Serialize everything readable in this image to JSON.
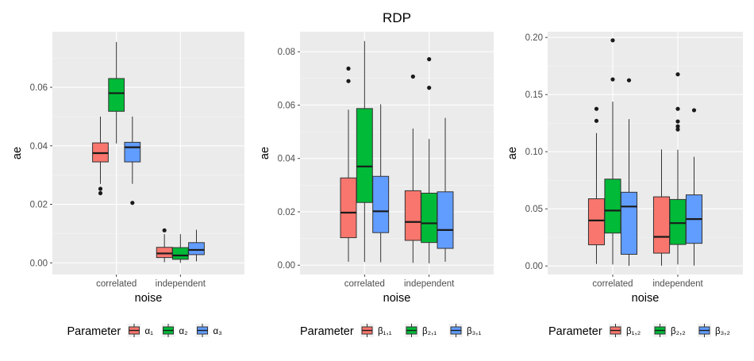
{
  "page_title": "RDP",
  "chart_data": [
    {
      "type": "boxplot",
      "xlabel": "noise",
      "ylabel": "ae",
      "categories": [
        "correlated",
        "independent"
      ],
      "ylim": [
        -0.004,
        0.079
      ],
      "yticks": [
        0.0,
        0.02,
        0.04,
        0.06
      ],
      "ytick_labels": [
        "0.00",
        "0.02",
        "0.04",
        "0.06"
      ],
      "legend": {
        "title": "Parameter",
        "labels": [
          "α₁",
          "α₂",
          "α₃"
        ],
        "position": "bottom"
      },
      "series": [
        {
          "name": "α₁",
          "color": "#F8766D",
          "boxes": [
            {
              "q1": 0.0345,
              "median": 0.0375,
              "q3": 0.041,
              "lower": 0.027,
              "upper": 0.05,
              "outliers": [
                0.0253,
                0.0238
              ]
            },
            {
              "q1": 0.0018,
              "median": 0.0032,
              "q3": 0.0053,
              "lower": 0.0002,
              "upper": 0.0098,
              "outliers": [
                0.0111
              ]
            }
          ]
        },
        {
          "name": "α₂",
          "color": "#00BA38",
          "boxes": [
            {
              "q1": 0.0518,
              "median": 0.058,
              "q3": 0.063,
              "lower": 0.0408,
              "upper": 0.0755,
              "outliers": []
            },
            {
              "q1": 0.0012,
              "median": 0.0025,
              "q3": 0.0052,
              "lower": 0.0,
              "upper": 0.0098,
              "outliers": []
            }
          ]
        },
        {
          "name": "α₃",
          "color": "#619CFF",
          "boxes": [
            {
              "q1": 0.0345,
              "median": 0.0395,
              "q3": 0.0412,
              "lower": 0.027,
              "upper": 0.05,
              "outliers": [
                0.0205
              ]
            },
            {
              "q1": 0.0028,
              "median": 0.0044,
              "q3": 0.0069,
              "lower": 0.0005,
              "upper": 0.0113,
              "outliers": []
            }
          ]
        }
      ]
    },
    {
      "type": "boxplot",
      "xlabel": "noise",
      "ylabel": "ae",
      "categories": [
        "correlated",
        "independent"
      ],
      "ylim": [
        -0.0035,
        0.0875
      ],
      "yticks": [
        0.0,
        0.02,
        0.04,
        0.06,
        0.08
      ],
      "ytick_labels": [
        "0.00",
        "0.02",
        "0.04",
        "0.06",
        "0.08"
      ],
      "legend": {
        "title": "Parameter",
        "labels": [
          "β₁,₁",
          "β₂,₁",
          "β₃,₁"
        ],
        "position": "bottom"
      },
      "series": [
        {
          "name": "β₁,₁",
          "color": "#F8766D",
          "boxes": [
            {
              "q1": 0.0103,
              "median": 0.0197,
              "q3": 0.0327,
              "lower": 0.0013,
              "upper": 0.0583,
              "outliers": [
                0.0737,
                0.069
              ]
            },
            {
              "q1": 0.0093,
              "median": 0.0162,
              "q3": 0.0279,
              "lower": 0.0009,
              "upper": 0.0512,
              "outliers": [
                0.0707
              ]
            }
          ]
        },
        {
          "name": "β₂,₁",
          "color": "#00BA38",
          "boxes": [
            {
              "q1": 0.0235,
              "median": 0.037,
              "q3": 0.0587,
              "lower": 0.0012,
              "upper": 0.084,
              "outliers": []
            },
            {
              "q1": 0.0085,
              "median": 0.0157,
              "q3": 0.027,
              "lower": 0.0007,
              "upper": 0.0473,
              "outliers": [
                0.0772,
                0.0665
              ]
            }
          ]
        },
        {
          "name": "β₃,₁",
          "color": "#619CFF",
          "boxes": [
            {
              "q1": 0.0122,
              "median": 0.0202,
              "q3": 0.0333,
              "lower": 0.0011,
              "upper": 0.0603,
              "outliers": []
            },
            {
              "q1": 0.0063,
              "median": 0.0132,
              "q3": 0.0275,
              "lower": 0.0013,
              "upper": 0.0552,
              "outliers": []
            }
          ]
        }
      ]
    },
    {
      "type": "boxplot",
      "xlabel": "noise",
      "ylabel": "ae",
      "categories": [
        "correlated",
        "independent"
      ],
      "ylim": [
        -0.0075,
        0.205
      ],
      "yticks": [
        0.0,
        0.05,
        0.1,
        0.15,
        0.2
      ],
      "ytick_labels": [
        "0.00",
        "0.05",
        "0.10",
        "0.15",
        "0.20"
      ],
      "legend": {
        "title": "Parameter",
        "labels": [
          "β₁,₂",
          "β₂,₂",
          "β₃,₂"
        ],
        "position": "bottom"
      },
      "series": [
        {
          "name": "β₁,₂",
          "color": "#F8766D",
          "boxes": [
            {
              "q1": 0.0185,
              "median": 0.0398,
              "q3": 0.0588,
              "lower": 0.0018,
              "upper": 0.1163,
              "outliers": [
                0.1375,
                0.127
              ]
            },
            {
              "q1": 0.0112,
              "median": 0.0255,
              "q3": 0.0605,
              "lower": 0.0002,
              "upper": 0.102,
              "outliers": []
            }
          ]
        },
        {
          "name": "β₂,₂",
          "color": "#00BA38",
          "boxes": [
            {
              "q1": 0.0288,
              "median": 0.0485,
              "q3": 0.076,
              "lower": 0.0013,
              "upper": 0.1438,
              "outliers": [
                0.1975,
                0.1633
              ]
            },
            {
              "q1": 0.0188,
              "median": 0.0375,
              "q3": 0.0582,
              "lower": 0.0013,
              "upper": 0.1017,
              "outliers": [
                0.1677,
                0.1265,
                0.1222,
                0.1195,
                0.1375
              ]
            }
          ]
        },
        {
          "name": "β₃,₂",
          "color": "#619CFF",
          "boxes": [
            {
              "q1": 0.0102,
              "median": 0.052,
              "q3": 0.0645,
              "lower": 0.0001,
              "upper": 0.1285,
              "outliers": [
                0.1625
              ]
            },
            {
              "q1": 0.0198,
              "median": 0.041,
              "q3": 0.0622,
              "lower": 0.0003,
              "upper": 0.0955,
              "outliers": [
                0.1363
              ]
            }
          ]
        }
      ]
    }
  ]
}
